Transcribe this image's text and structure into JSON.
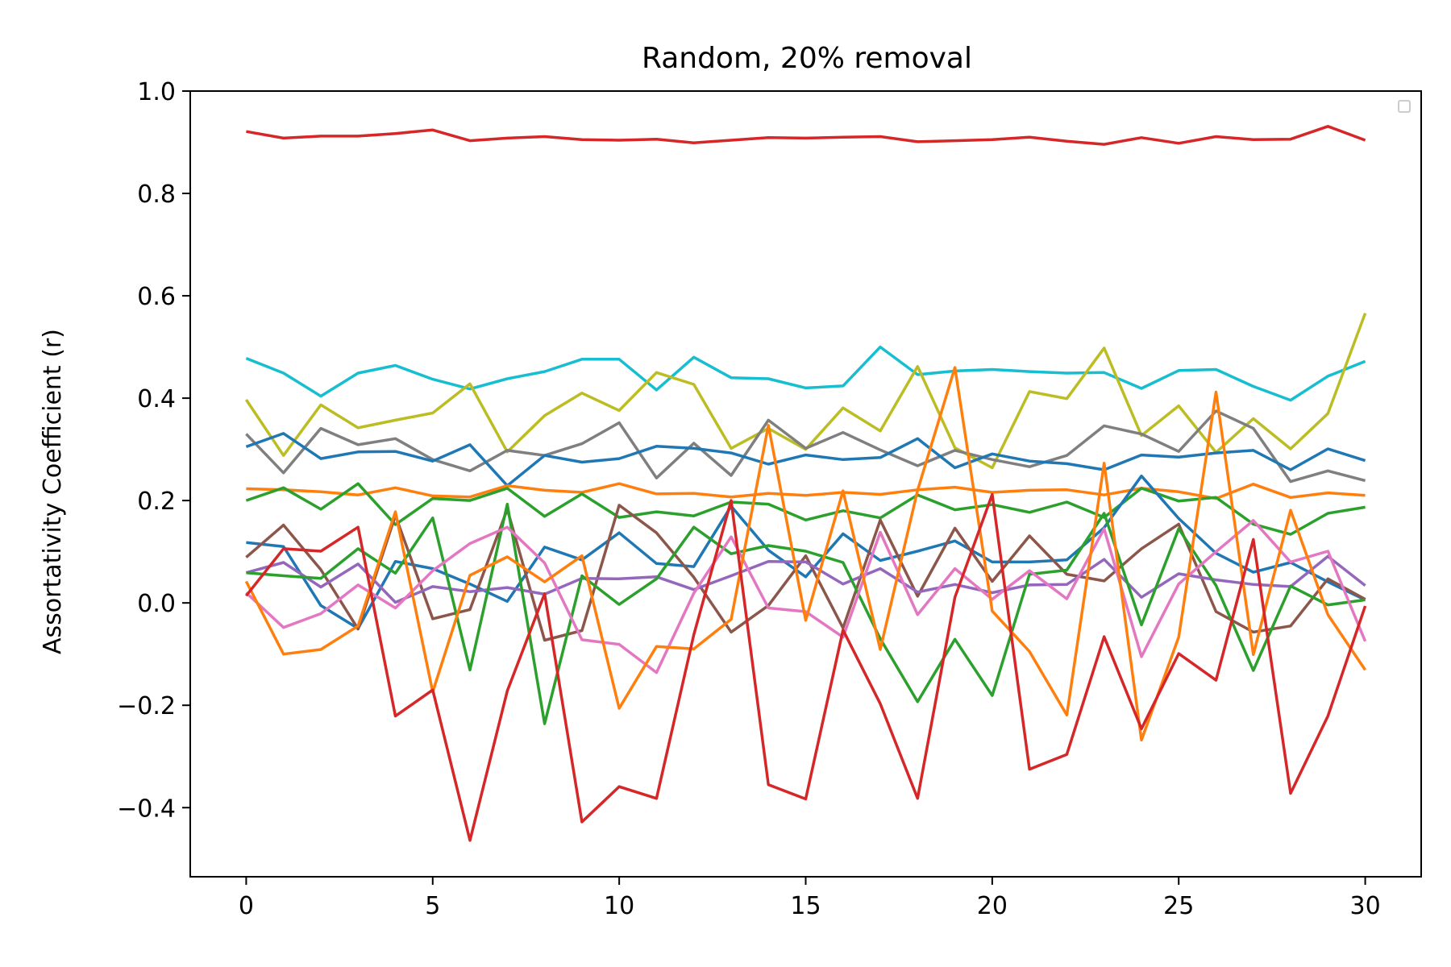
{
  "chart_data": {
    "type": "line",
    "title": "Random, 20% removal",
    "xlabel": "",
    "ylabel": "Assortativity Coefficient (r)",
    "xlim": [
      -1.5,
      31.5
    ],
    "ylim": [
      -0.535,
      1.0
    ],
    "xticks": [
      0,
      5,
      10,
      15,
      20,
      25,
      30
    ],
    "yticks": [
      -0.4,
      -0.2,
      0.0,
      0.2,
      0.4,
      0.6,
      0.8,
      1.0
    ],
    "ytick_labels": [
      "−0.4",
      "−0.2",
      "0.0",
      "0.2",
      "0.4",
      "0.6",
      "0.8",
      "1.0"
    ],
    "grid": false,
    "legend": "top-right (empty)",
    "x": [
      0,
      1,
      2,
      3,
      4,
      5,
      6,
      7,
      8,
      9,
      10,
      11,
      12,
      13,
      14,
      15,
      16,
      17,
      18,
      19,
      20,
      21,
      22,
      23,
      24,
      25,
      26,
      27,
      28,
      29,
      30
    ],
    "series": [
      {
        "color": "#d62728",
        "values": [
          0.921,
          0.908,
          0.912,
          0.912,
          0.917,
          0.924,
          0.903,
          0.908,
          0.911,
          0.905,
          0.904,
          0.906,
          0.899,
          0.904,
          0.909,
          0.908,
          0.91,
          0.911,
          0.901,
          0.903,
          0.905,
          0.91,
          0.902,
          0.896,
          0.909,
          0.898,
          0.911,
          0.905,
          0.906,
          0.931,
          0.904
        ]
      },
      {
        "color": "#17becf",
        "values": [
          0.478,
          0.449,
          0.404,
          0.449,
          0.464,
          0.437,
          0.418,
          0.438,
          0.452,
          0.476,
          0.476,
          0.416,
          0.48,
          0.44,
          0.438,
          0.42,
          0.424,
          0.5,
          0.446,
          0.453,
          0.456,
          0.452,
          0.449,
          0.45,
          0.419,
          0.454,
          0.456,
          0.423,
          0.396,
          0.443,
          0.472
        ]
      },
      {
        "color": "#bcbd22",
        "values": [
          0.397,
          0.288,
          0.387,
          0.342,
          0.357,
          0.371,
          0.428,
          0.295,
          0.366,
          0.41,
          0.376,
          0.45,
          0.427,
          0.302,
          0.341,
          0.3,
          0.381,
          0.336,
          0.462,
          0.303,
          0.264,
          0.413,
          0.399,
          0.498,
          0.327,
          0.385,
          0.294,
          0.36,
          0.301,
          0.37,
          0.566
        ]
      },
      {
        "color": "#7f7f7f",
        "values": [
          0.33,
          0.254,
          0.341,
          0.309,
          0.321,
          0.28,
          0.258,
          0.298,
          0.288,
          0.311,
          0.352,
          0.244,
          0.312,
          0.249,
          0.357,
          0.302,
          0.333,
          0.299,
          0.268,
          0.298,
          0.28,
          0.266,
          0.288,
          0.346,
          0.33,
          0.296,
          0.375,
          0.341,
          0.237,
          0.258,
          0.239
        ]
      },
      {
        "color": "#1f77b4",
        "values": [
          0.305,
          0.331,
          0.282,
          0.295,
          0.296,
          0.277,
          0.309,
          0.229,
          0.288,
          0.275,
          0.282,
          0.306,
          0.302,
          0.293,
          0.271,
          0.289,
          0.28,
          0.284,
          0.321,
          0.264,
          0.291,
          0.277,
          0.272,
          0.26,
          0.289,
          0.285,
          0.293,
          0.298,
          0.26,
          0.301,
          0.278
        ]
      },
      {
        "color": "#ff7f0e",
        "values": [
          0.223,
          0.221,
          0.217,
          0.211,
          0.225,
          0.209,
          0.207,
          0.229,
          0.22,
          0.216,
          0.233,
          0.213,
          0.214,
          0.207,
          0.214,
          0.21,
          0.216,
          0.212,
          0.221,
          0.226,
          0.216,
          0.22,
          0.221,
          0.211,
          0.224,
          0.217,
          0.204,
          0.232,
          0.206,
          0.215,
          0.21
        ]
      },
      {
        "color": "#2ca02c",
        "values": [
          0.2,
          0.225,
          0.183,
          0.233,
          0.153,
          0.204,
          0.2,
          0.224,
          0.169,
          0.213,
          0.167,
          0.178,
          0.17,
          0.197,
          0.193,
          0.162,
          0.18,
          0.166,
          0.211,
          0.182,
          0.192,
          0.177,
          0.197,
          0.167,
          0.224,
          0.199,
          0.206,
          0.154,
          0.134,
          0.175,
          0.187
        ]
      },
      {
        "color": "#1f77b4",
        "values": [
          0.118,
          0.11,
          -0.005,
          -0.05,
          0.081,
          0.067,
          0.037,
          0.003,
          0.109,
          0.084,
          0.137,
          0.077,
          0.071,
          0.189,
          0.103,
          0.051,
          0.135,
          0.083,
          0.101,
          0.121,
          0.08,
          0.08,
          0.084,
          0.147,
          0.248,
          0.165,
          0.097,
          0.06,
          0.079,
          0.041,
          0.006
        ]
      },
      {
        "color": "#8c564b",
        "values": [
          0.089,
          0.152,
          0.065,
          -0.051,
          0.171,
          -0.031,
          -0.013,
          0.183,
          -0.073,
          -0.054,
          0.191,
          0.137,
          0.05,
          -0.057,
          -0.005,
          0.092,
          -0.049,
          0.162,
          0.013,
          0.146,
          0.042,
          0.131,
          0.056,
          0.043,
          0.106,
          0.154,
          -0.017,
          -0.057,
          -0.045,
          0.047,
          0.007
        ]
      },
      {
        "color": "#9467bd",
        "values": [
          0.059,
          0.079,
          0.031,
          0.076,
          0.001,
          0.032,
          0.022,
          0.03,
          0.017,
          0.048,
          0.047,
          0.051,
          0.026,
          0.053,
          0.081,
          0.08,
          0.037,
          0.067,
          0.021,
          0.036,
          0.02,
          0.035,
          0.036,
          0.085,
          0.011,
          0.057,
          0.045,
          0.036,
          0.032,
          0.091,
          0.034
        ]
      },
      {
        "color": "#2ca02c",
        "values": [
          0.059,
          0.053,
          0.048,
          0.106,
          0.058,
          0.166,
          -0.131,
          0.193,
          -0.236,
          0.053,
          -0.003,
          0.047,
          0.148,
          0.096,
          0.112,
          0.101,
          0.079,
          -0.07,
          -0.193,
          -0.071,
          -0.181,
          0.056,
          0.064,
          0.175,
          -0.043,
          0.145,
          0.034,
          -0.132,
          0.033,
          -0.004,
          0.006
        ]
      },
      {
        "color": "#e377c2",
        "values": [
          0.02,
          -0.048,
          -0.021,
          0.035,
          -0.01,
          0.063,
          0.116,
          0.148,
          0.078,
          -0.072,
          -0.081,
          -0.136,
          0.019,
          0.129,
          -0.01,
          -0.017,
          -0.067,
          0.138,
          -0.023,
          0.067,
          0.007,
          0.063,
          0.008,
          0.145,
          -0.105,
          0.037,
          0.1,
          0.161,
          0.08,
          0.101,
          -0.075
        ]
      },
      {
        "color": "#ff7f0e",
        "values": [
          0.042,
          -0.1,
          -0.091,
          -0.045,
          0.178,
          -0.174,
          0.054,
          0.09,
          0.041,
          0.092,
          -0.206,
          -0.085,
          -0.09,
          -0.032,
          0.347,
          -0.034,
          0.219,
          -0.091,
          0.22,
          0.46,
          -0.016,
          -0.095,
          -0.219,
          0.273,
          -0.268,
          -0.067,
          0.412,
          -0.101,
          0.181,
          -0.023,
          -0.131
        ]
      },
      {
        "color": "#d62728",
        "values": [
          0.014,
          0.106,
          0.101,
          0.148,
          -0.221,
          -0.17,
          -0.464,
          -0.172,
          0.018,
          -0.428,
          -0.359,
          -0.382,
          -0.062,
          0.2,
          -0.355,
          -0.383,
          -0.053,
          -0.197,
          -0.382,
          0.011,
          0.212,
          -0.325,
          -0.296,
          -0.066,
          -0.246,
          -0.099,
          -0.151,
          0.124,
          -0.372,
          -0.221,
          -0.006
        ]
      }
    ]
  }
}
